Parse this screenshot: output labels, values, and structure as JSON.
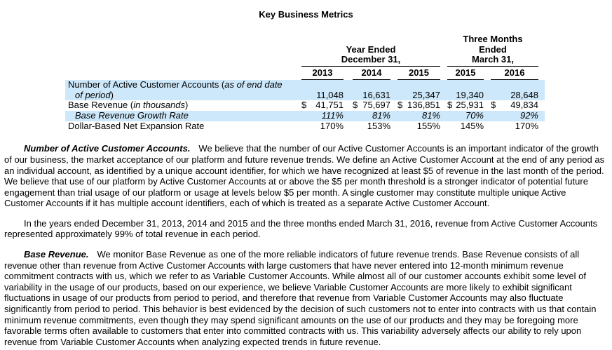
{
  "title": "Key Business Metrics",
  "table": {
    "dollar_sign": "$",
    "highlight_color": "#CDE8FA",
    "header": {
      "year_ended": {
        "line1": "Year Ended",
        "line2": "December 31,"
      },
      "three_months": {
        "line1": "Three Months",
        "line2": "Ended",
        "line3": "March 31,"
      },
      "years": [
        "2013",
        "2014",
        "2015",
        "2015",
        "2016"
      ]
    },
    "rows": [
      {
        "label_prefix": "Number of Active Customer Accounts (",
        "label_italic_line1": "as of end date",
        "label_italic_line2": "of period",
        "label_suffix": ")",
        "values": [
          "11,048",
          "16,631",
          "25,347",
          "19,340",
          "28,648"
        ]
      },
      {
        "label_prefix": "Base Revenue (",
        "label_italic": "in thousands",
        "label_suffix": ")",
        "values": [
          "41,751",
          "75,697",
          "136,851",
          "25,931",
          "49,834"
        ]
      },
      {
        "label_italic": "Base Revenue Growth Rate",
        "values": [
          "111%",
          "81%",
          "81%",
          "70%",
          "92%"
        ]
      },
      {
        "label": "Dollar-Based Net Expansion Rate",
        "values": [
          "170%",
          "153%",
          "155%",
          "145%",
          "170%"
        ]
      }
    ]
  },
  "paragraphs": [
    {
      "lead": "Number of Active Customer Accounts.",
      "text": "We believe that the number of our Active Customer Accounts is an important indicator of the growth of our business, the market acceptance of our platform and future revenue trends. We define an Active Customer Account at the end of any period as an individual account, as identified by a unique account identifier, for which we have recognized at least $5 of revenue in the last month of the period. We believe that use of our platform by Active Customer Accounts at or above the $5 per month threshold is a stronger indicator of potential future engagement than trial usage of our platform or usage at levels below $5 per month. A single customer may constitute multiple unique Active Customer Accounts if it has multiple account identifiers, each of which is treated as a separate Active Customer Account."
    },
    {
      "text": "In the years ended December 31, 2013, 2014 and 2015 and the three months ended March 31, 2016, revenue from Active Customer Accounts represented approximately 99% of total revenue in each period."
    },
    {
      "lead": "Base Revenue.",
      "text": "We monitor Base Revenue as one of the more reliable indicators of future revenue trends. Base Revenue consists of all revenue other than revenue from Active Customer Accounts with large customers that have never entered into 12-month minimum revenue commitment contracts with us, which we refer to as Variable Customer Accounts. While almost all of our customer accounts exhibit some level of variability in the usage of our products, based on our experience, we believe Variable Customer Accounts are more likely to exhibit significant fluctuations in usage of our products from period to period, and therefore that revenue from Variable Customer Accounts may also fluctuate significantly from period to period. This behavior is best evidenced by the decision of such customers not to enter into contracts with us that contain minimum revenue commitments, even though they may spend significant amounts on the use of our products and they may be foregoing more favorable terms often available to customers that enter into committed contracts with us. This variability adversely affects our ability to rely upon revenue from Variable Customer Accounts when analyzing expected trends in future revenue."
    }
  ]
}
